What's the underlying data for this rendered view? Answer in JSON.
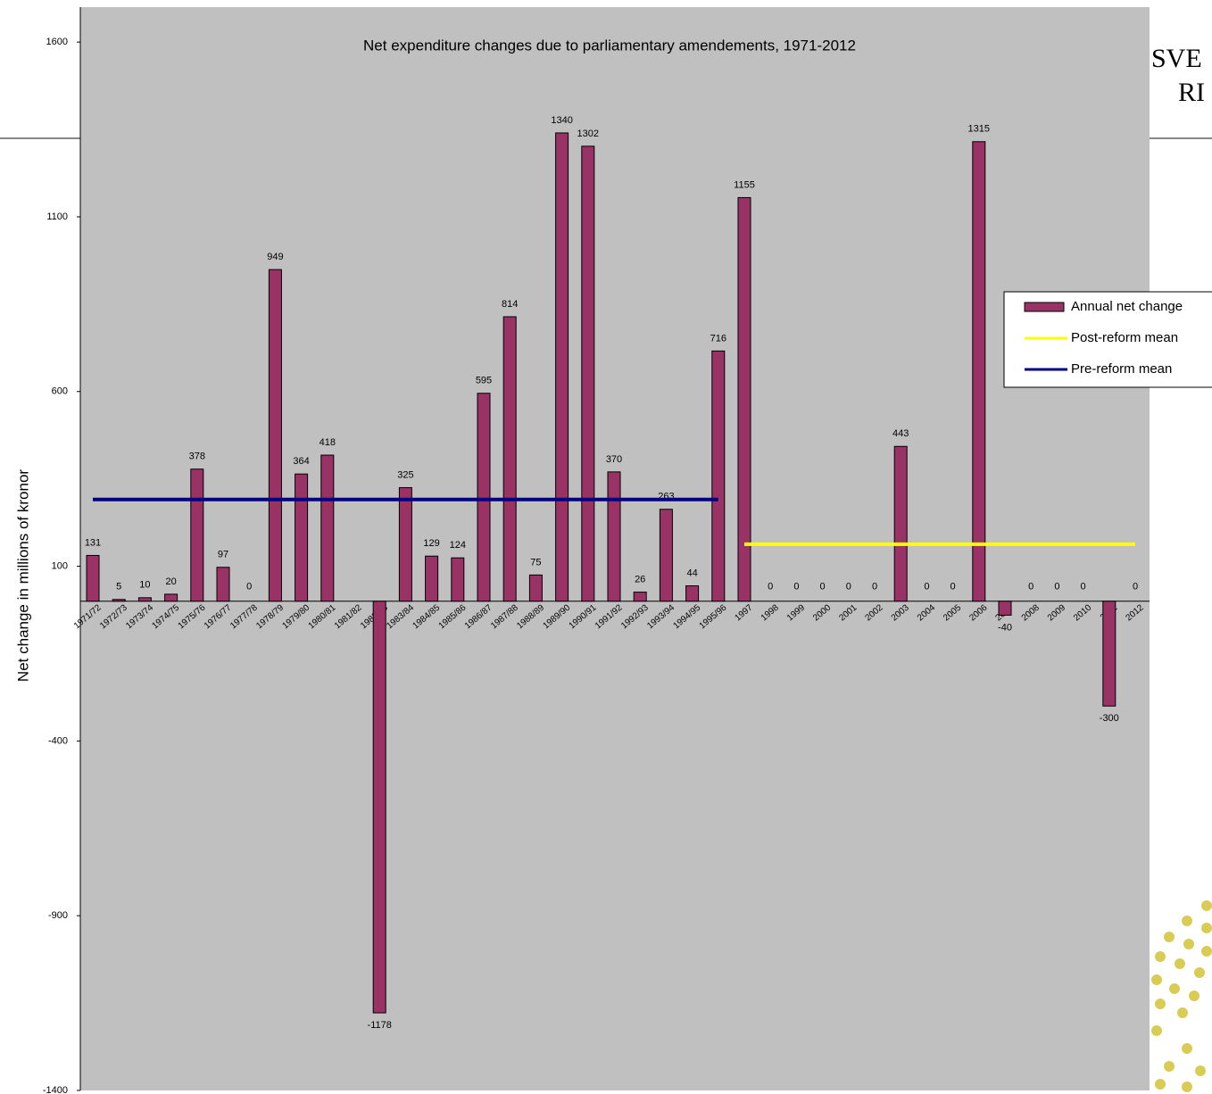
{
  "chart_data": {
    "type": "bar",
    "title": "Net expenditure changes due to parliamentary amendements, 1971-2012",
    "y_label": "Net change in millions of kronor",
    "categories": [
      "1971/72",
      "1972/73",
      "1973/74",
      "1974/75",
      "1975/76",
      "1976/77",
      "1977/78",
      "1978/79",
      "1979/80",
      "1980/81",
      "1981/82",
      "1982/83",
      "1983/84",
      "1984/85",
      "1985/86",
      "1986/87",
      "1987/88",
      "1988/89",
      "1989/90",
      "1990/91",
      "1991/92",
      "1992/93",
      "1993/94",
      "1994/95",
      "1995/96",
      "1997",
      "1998",
      "1999",
      "2000",
      "2001",
      "2002",
      "2003",
      "2004",
      "2005",
      "2006",
      "2007",
      "2008",
      "2009",
      "2010",
      "2011",
      "2012"
    ],
    "series": [
      {
        "name": "Annual net change",
        "type": "bar",
        "color": "#993366",
        "values": [
          131,
          5,
          10,
          20,
          378,
          97,
          0,
          949,
          364,
          418,
          null,
          -1178,
          325,
          129,
          124,
          595,
          814,
          75,
          1340,
          1302,
          370,
          26,
          263,
          44,
          716,
          1155,
          0,
          0,
          0,
          0,
          0,
          443,
          0,
          0,
          1315,
          -40,
          0,
          0,
          0,
          -300,
          0
        ]
      },
      {
        "name": "Post-reform mean",
        "type": "line",
        "color": "#ffff00",
        "values": [
          null,
          null,
          null,
          null,
          null,
          null,
          null,
          null,
          null,
          null,
          null,
          null,
          null,
          null,
          null,
          null,
          null,
          null,
          null,
          null,
          null,
          null,
          null,
          null,
          null,
          163,
          163,
          163,
          163,
          163,
          163,
          163,
          163,
          163,
          163,
          163,
          163,
          163,
          163,
          163,
          163
        ]
      },
      {
        "name": "Pre-reform mean",
        "type": "line",
        "color": "#000080",
        "values": [
          291,
          291,
          291,
          291,
          291,
          291,
          291,
          291,
          291,
          291,
          291,
          291,
          291,
          291,
          291,
          291,
          291,
          291,
          291,
          291,
          291,
          291,
          291,
          291,
          291,
          null,
          null,
          null,
          null,
          null,
          null,
          null,
          null,
          null,
          null,
          null,
          null,
          null,
          null,
          null,
          null
        ]
      }
    ],
    "ylim": [
      -1400,
      1700
    ],
    "yticks": [
      -1400,
      -900,
      -400,
      100,
      600,
      1100,
      1600
    ],
    "legend": "right",
    "background": "#c0c0c0"
  },
  "logo": [
    "SVE",
    "RI"
  ]
}
